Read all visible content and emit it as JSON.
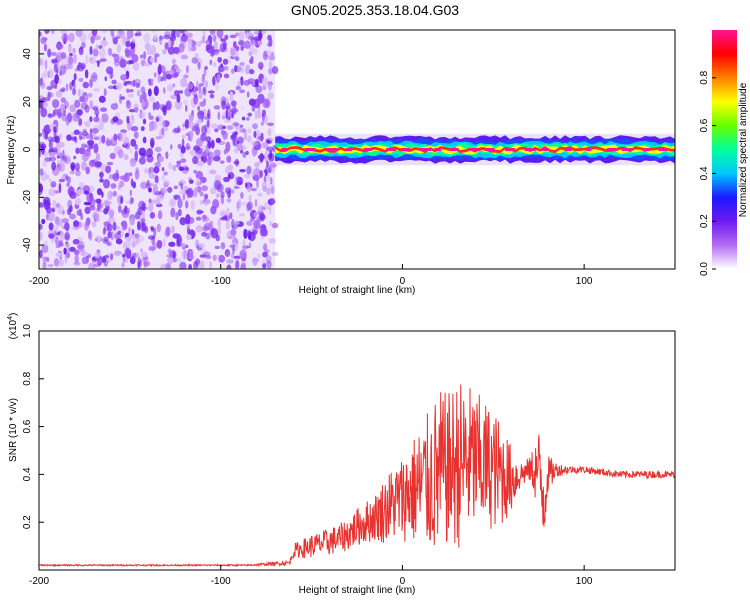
{
  "page_title": "GN05.2025.353.18.04.G03",
  "chart_data": [
    {
      "type": "heatmap",
      "title": "GN05.2025.353.18.04.G03",
      "xlabel": "Height of straight line (km)",
      "ylabel": "Frequency (Hz)",
      "xlim": [
        -200,
        150
      ],
      "ylim": [
        -50,
        50
      ],
      "x_ticks": [
        -200,
        -100,
        0,
        100
      ],
      "x_tick_labels": [
        "-200",
        "-100",
        "0",
        "100"
      ],
      "y_ticks": [
        -40,
        -20,
        0,
        20,
        40
      ],
      "y_tick_labels": [
        "-40",
        "-20",
        "0",
        "20",
        "40"
      ],
      "noise_region_x": [
        -200,
        -70
      ],
      "signal_band": {
        "x_start": -70,
        "x_end": 150,
        "center_freq": 0,
        "halfwidth": 3
      },
      "colorbar": {
        "label": "Normalized spectral amplitude",
        "range": [
          0,
          1
        ],
        "ticks": [
          0.0,
          0.2,
          0.4,
          0.6,
          0.8
        ],
        "tick_labels": [
          "0.0",
          "0.2",
          "0.4",
          "0.6",
          "0.8"
        ],
        "colors": [
          "#ffffff",
          "#b46cf2",
          "#6c1bf0",
          "#1a1aff",
          "#00c8ff",
          "#00ff9a",
          "#66ff00",
          "#ffff00",
          "#ff8000",
          "#ff0000",
          "#ff1493"
        ]
      },
      "grid": false,
      "legend": "none"
    },
    {
      "type": "line",
      "xlabel": "Height of straight line (km)",
      "ylabel": "SNR (10 * v/v)",
      "y_multiplier": "(x10",
      "y_multiplier_exp": "4",
      "y_multiplier_close": ")",
      "xlim": [
        -200,
        150
      ],
      "ylim": [
        0,
        1.0
      ],
      "x_ticks": [
        -200,
        -100,
        0,
        100
      ],
      "x_tick_labels": [
        "-200",
        "-100",
        "0",
        "100"
      ],
      "y_ticks": [
        0.2,
        0.4,
        0.6,
        0.8,
        1.0
      ],
      "y_tick_labels": [
        "0.2",
        "0.4",
        "0.6",
        "0.8",
        "1.0"
      ],
      "line_color": "#e8322f",
      "series": [
        {
          "x": [
            -200,
            -180,
            -160,
            -140,
            -120,
            -100,
            -85,
            -62,
            -60,
            -55,
            -50,
            -45,
            -40,
            -35,
            -30,
            -25,
            -20,
            -15,
            -10,
            -5,
            0,
            5,
            10,
            15,
            20,
            25,
            30,
            35,
            40,
            45,
            50,
            55,
            60,
            65,
            70,
            75,
            78,
            80,
            85,
            90,
            95,
            100,
            110,
            120,
            130,
            140,
            150
          ],
          "y": [
            0.02,
            0.02,
            0.02,
            0.02,
            0.02,
            0.02,
            0.02,
            0.03,
            0.08,
            0.09,
            0.1,
            0.11,
            0.12,
            0.13,
            0.15,
            0.18,
            0.2,
            0.22,
            0.25,
            0.28,
            0.3,
            0.33,
            0.35,
            0.37,
            0.4,
            0.42,
            0.44,
            0.46,
            0.45,
            0.44,
            0.42,
            0.4,
            0.38,
            0.4,
            0.42,
            0.42,
            0.3,
            0.4,
            0.42,
            0.42,
            0.42,
            0.42,
            0.41,
            0.4,
            0.4,
            0.4,
            0.4
          ],
          "amplitude": [
            0.003,
            0.003,
            0.003,
            0.003,
            0.003,
            0.003,
            0.003,
            0.01,
            0.03,
            0.04,
            0.05,
            0.05,
            0.06,
            0.06,
            0.07,
            0.08,
            0.09,
            0.1,
            0.14,
            0.16,
            0.18,
            0.22,
            0.26,
            0.3,
            0.36,
            0.32,
            0.36,
            0.34,
            0.3,
            0.28,
            0.25,
            0.22,
            0.14,
            0.06,
            0.05,
            0.18,
            0.2,
            0.08,
            0.03,
            0.02,
            0.015,
            0.015,
            0.015,
            0.015,
            0.015,
            0.015,
            0.015
          ]
        }
      ],
      "grid": false,
      "legend": "none"
    }
  ]
}
